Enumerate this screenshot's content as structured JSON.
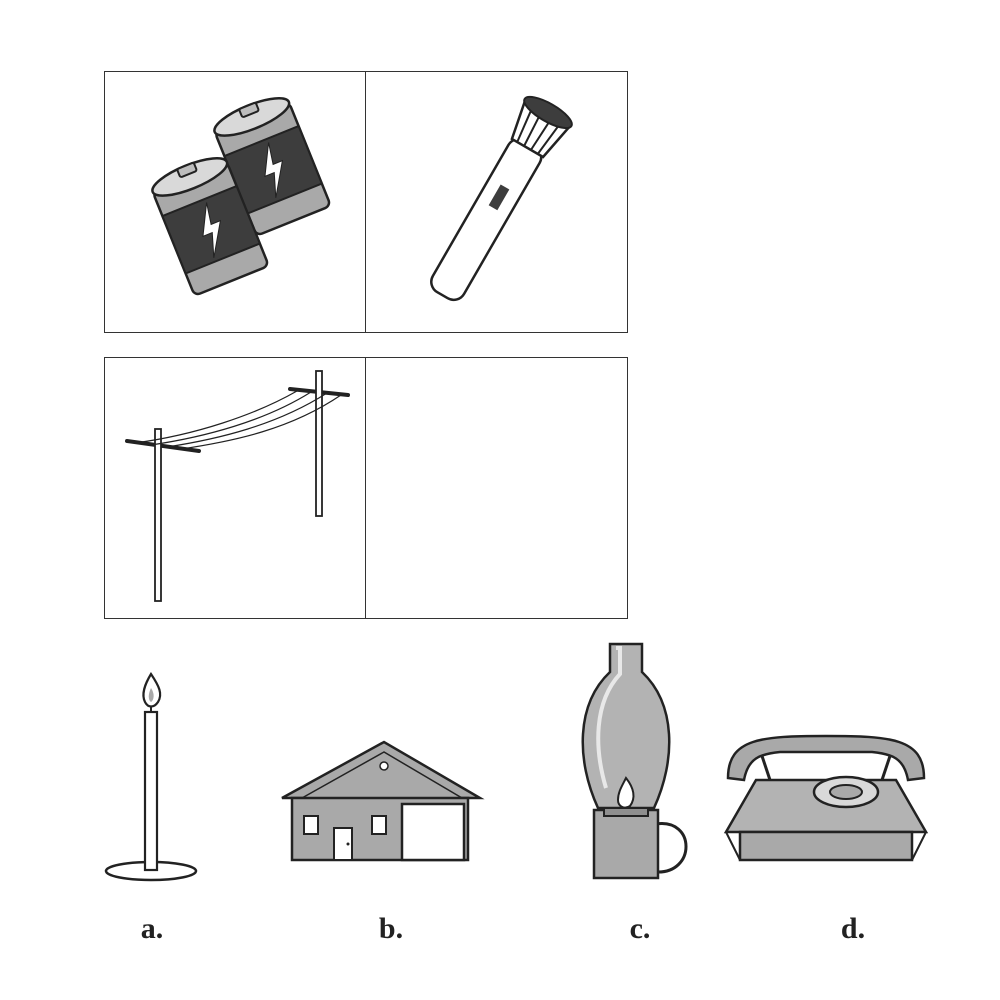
{
  "puzzle": {
    "grid": [
      {
        "picture": "batteries-icon"
      },
      {
        "picture": "flashlight-icon"
      },
      {
        "picture": "power-lines-icon"
      },
      {
        "picture": "empty"
      }
    ],
    "options": [
      {
        "label": "a.",
        "picture": "candle-icon"
      },
      {
        "label": "b.",
        "picture": "house-icon"
      },
      {
        "label": "c.",
        "picture": "oil-lamp-icon"
      },
      {
        "label": "d.",
        "picture": "telephone-icon"
      }
    ]
  },
  "colors": {
    "outline": "#333333",
    "gray": "#a9a9a9",
    "dark": "#3d3d3d",
    "light": "#d9d9d9"
  }
}
